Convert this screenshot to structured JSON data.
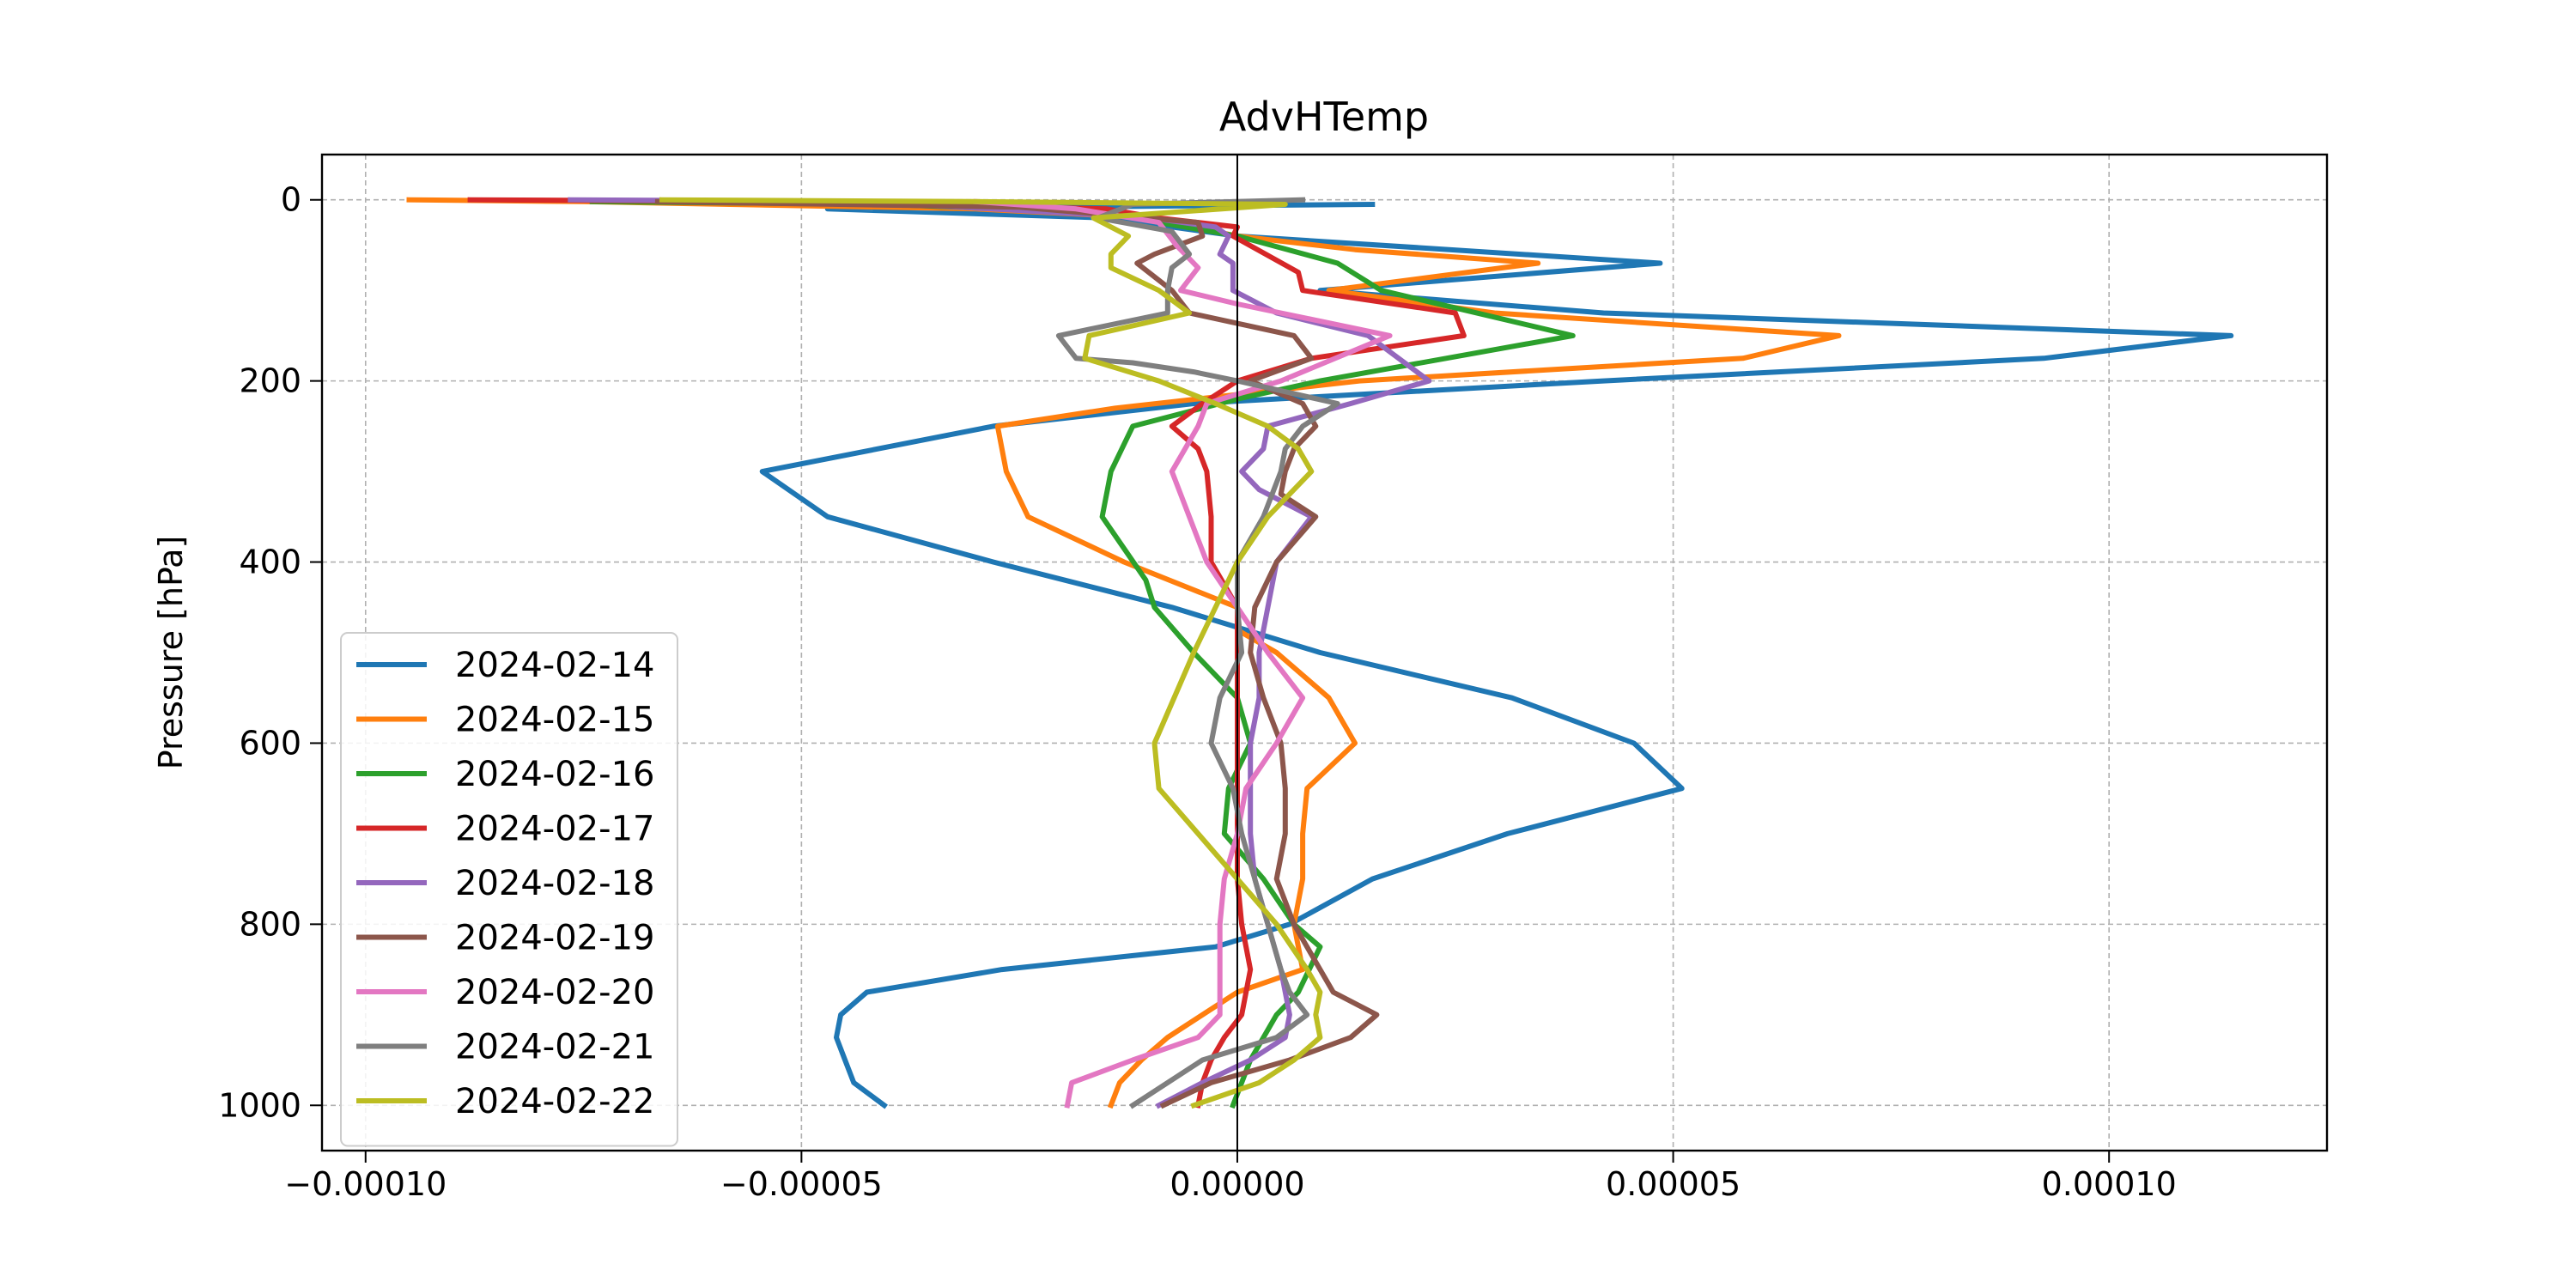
{
  "chart_data": {
    "type": "line",
    "title": "AdvHTemp",
    "xlabel": "",
    "ylabel": "Pressure [hPa]",
    "xlim": [
      -0.000105,
      0.000125
    ],
    "ylim": [
      1050,
      -50
    ],
    "y_inverted": true,
    "grid": true,
    "legend_position": "lower-left",
    "zero_line": true,
    "xticks": [
      -0.0001,
      -5e-05,
      0.0,
      5e-05,
      0.0001
    ],
    "xtick_labels": [
      "−0.00010",
      "−0.00005",
      "0.00000",
      "0.00005",
      "0.00010"
    ],
    "yticks": [
      0,
      200,
      400,
      600,
      800,
      1000
    ],
    "ytick_labels": [
      "0",
      "200",
      "400",
      "600",
      "800",
      "1000"
    ],
    "series": [
      {
        "name": "2024-02-14",
        "color": "#1f77b4",
        "points": [
          [
            1.55e-05,
            5
          ],
          [
            -4.7e-05,
            10
          ],
          [
            -1.5e-05,
            20
          ],
          [
            0.0,
            40
          ],
          [
            4.85e-05,
            70
          ],
          [
            9.5e-06,
            100
          ],
          [
            4.2e-05,
            125
          ],
          [
            0.000114,
            150
          ],
          [
            9.25e-05,
            175
          ],
          [
            4.2e-05,
            200
          ],
          [
            -5e-06,
            225
          ],
          [
            -2.8e-05,
            250
          ],
          [
            -5.45e-05,
            300
          ],
          [
            -4.7e-05,
            350
          ],
          [
            -2.8e-05,
            400
          ],
          [
            -7.5e-06,
            450
          ],
          [
            9.5e-06,
            500
          ],
          [
            3.15e-05,
            550
          ],
          [
            4.55e-05,
            600
          ],
          [
            5.1e-05,
            650
          ],
          [
            3.1e-05,
            700
          ],
          [
            1.55e-05,
            750
          ],
          [
            6e-06,
            800
          ],
          [
            -2.5e-06,
            825
          ],
          [
            -2.7e-05,
            850
          ],
          [
            -4.25e-05,
            875
          ],
          [
            -4.55e-05,
            900
          ],
          [
            -4.6e-05,
            925
          ],
          [
            -4.5e-05,
            950
          ],
          [
            -4.4e-05,
            975
          ],
          [
            -4.05e-05,
            1000
          ]
        ]
      },
      {
        "name": "2024-02-15",
        "color": "#ff7f0e",
        "points": [
          [
            -9.5e-05,
            0
          ],
          [
            -7.5e-05,
            2
          ],
          [
            -3e-05,
            10
          ],
          [
            -1e-05,
            20
          ],
          [
            0.0,
            40
          ],
          [
            1.35e-05,
            55
          ],
          [
            3.45e-05,
            70
          ],
          [
            1.05e-05,
            100
          ],
          [
            2.95e-05,
            125
          ],
          [
            6.9e-05,
            150
          ],
          [
            5.8e-05,
            175
          ],
          [
            1.4e-05,
            200
          ],
          [
            0.0,
            215
          ],
          [
            -1.4e-05,
            230
          ],
          [
            -2.75e-05,
            250
          ],
          [
            -2.65e-05,
            300
          ],
          [
            -2.4e-05,
            350
          ],
          [
            -1.3e-05,
            400
          ],
          [
            0.0,
            450
          ],
          [
            0.0,
            475
          ],
          [
            4.5e-06,
            500
          ],
          [
            1.05e-05,
            550
          ],
          [
            1.35e-05,
            600
          ],
          [
            8e-06,
            650
          ],
          [
            7.5e-06,
            700
          ],
          [
            7.5e-06,
            750
          ],
          [
            6.5e-06,
            800
          ],
          [
            7.5e-06,
            850
          ],
          [
            0.0,
            875
          ],
          [
            -4e-06,
            900
          ],
          [
            -8e-06,
            925
          ],
          [
            -1.1e-05,
            950
          ],
          [
            -1.35e-05,
            975
          ],
          [
            -1.45e-05,
            1000
          ]
        ]
      },
      {
        "name": "2024-02-16",
        "color": "#2ca02c",
        "points": [
          [
            -7.4e-05,
            2
          ],
          [
            -4e-05,
            5
          ],
          [
            -1.5e-05,
            15
          ],
          [
            0.0,
            40
          ],
          [
            1.15e-05,
            70
          ],
          [
            1.65e-05,
            100
          ],
          [
            3.85e-05,
            150
          ],
          [
            9.5e-06,
            200
          ],
          [
            0.0,
            220
          ],
          [
            -1.2e-05,
            250
          ],
          [
            -1.45e-05,
            300
          ],
          [
            -1.55e-05,
            350
          ],
          [
            -1.05e-05,
            420
          ],
          [
            -9.5e-06,
            450
          ],
          [
            -5e-06,
            500
          ],
          [
            0.0,
            550
          ],
          [
            1.5e-06,
            600
          ],
          [
            -1e-06,
            650
          ],
          [
            -1.5e-06,
            700
          ],
          [
            3e-06,
            750
          ],
          [
            6.5e-06,
            800
          ],
          [
            9.5e-06,
            825
          ],
          [
            7e-06,
            875
          ],
          [
            4.5e-06,
            900
          ],
          [
            1.5e-06,
            950
          ],
          [
            -5e-07,
            1000
          ]
        ]
      },
      {
        "name": "2024-02-17",
        "color": "#d62728",
        "points": [
          [
            -8.8e-05,
            0
          ],
          [
            -5e-05,
            2
          ],
          [
            -1.5e-05,
            10
          ],
          [
            -9e-06,
            20
          ],
          [
            0.0,
            30
          ],
          [
            -5e-07,
            40
          ],
          [
            7e-06,
            80
          ],
          [
            7.5e-06,
            100
          ],
          [
            2.5e-05,
            125
          ],
          [
            2.6e-05,
            150
          ],
          [
            8.5e-06,
            175
          ],
          [
            0.0,
            200
          ],
          [
            -4e-06,
            225
          ],
          [
            -7.5e-06,
            250
          ],
          [
            -4.5e-06,
            275
          ],
          [
            -3.5e-06,
            300
          ],
          [
            -3e-06,
            350
          ],
          [
            -3e-06,
            400
          ],
          [
            0.0,
            450
          ],
          [
            0.0,
            500
          ],
          [
            0.0,
            550
          ],
          [
            0.0,
            600
          ],
          [
            0.0,
            650
          ],
          [
            0.0,
            700
          ],
          [
            0.0,
            750
          ],
          [
            5e-07,
            800
          ],
          [
            1.5e-06,
            850
          ],
          [
            5e-07,
            900
          ],
          [
            -1.5e-06,
            925
          ],
          [
            -3e-06,
            950
          ],
          [
            -4e-06,
            975
          ],
          [
            -4.5e-06,
            1000
          ]
        ]
      },
      {
        "name": "2024-02-18",
        "color": "#9467bd",
        "points": [
          [
            -7.65e-05,
            0
          ],
          [
            -4.3e-05,
            2
          ],
          [
            -1e-05,
            20
          ],
          [
            -2.5e-06,
            30
          ],
          [
            -1e-06,
            40
          ],
          [
            -2e-06,
            60
          ],
          [
            -5e-07,
            70
          ],
          [
            -5e-07,
            100
          ],
          [
            4.5e-06,
            125
          ],
          [
            1.5e-05,
            150
          ],
          [
            2.2e-05,
            200
          ],
          [
            1.3e-05,
            225
          ],
          [
            3.5e-06,
            250
          ],
          [
            3e-06,
            275
          ],
          [
            5e-07,
            300
          ],
          [
            2.5e-06,
            320
          ],
          [
            8.5e-06,
            350
          ],
          [
            4.5e-06,
            400
          ],
          [
            3.5e-06,
            450
          ],
          [
            2.5e-06,
            500
          ],
          [
            2.5e-06,
            550
          ],
          [
            1.5e-06,
            600
          ],
          [
            1.5e-06,
            650
          ],
          [
            1.5e-06,
            700
          ],
          [
            2e-06,
            750
          ],
          [
            3.5e-06,
            800
          ],
          [
            5e-06,
            850
          ],
          [
            6e-06,
            900
          ],
          [
            5.5e-06,
            925
          ],
          [
            1.5e-06,
            950
          ],
          [
            -4e-06,
            975
          ],
          [
            -9e-06,
            1000
          ]
        ]
      },
      {
        "name": "2024-02-19",
        "color": "#8c564b",
        "points": [
          [
            -6.65e-05,
            2
          ],
          [
            -2.5e-05,
            8
          ],
          [
            -4.5e-06,
            25
          ],
          [
            -4e-06,
            40
          ],
          [
            -9.5e-06,
            60
          ],
          [
            -1.15e-05,
            70
          ],
          [
            -7.5e-06,
            100
          ],
          [
            -5.5e-06,
            125
          ],
          [
            6.5e-06,
            150
          ],
          [
            8.5e-06,
            175
          ],
          [
            1.5e-06,
            200
          ],
          [
            7.5e-06,
            225
          ],
          [
            9e-06,
            250
          ],
          [
            6.5e-06,
            275
          ],
          [
            5.5e-06,
            300
          ],
          [
            5e-06,
            325
          ],
          [
            9e-06,
            350
          ],
          [
            4.5e-06,
            400
          ],
          [
            2e-06,
            450
          ],
          [
            1.5e-06,
            500
          ],
          [
            3e-06,
            550
          ],
          [
            5e-06,
            600
          ],
          [
            5.5e-06,
            650
          ],
          [
            5.5e-06,
            700
          ],
          [
            4.5e-06,
            750
          ],
          [
            6.5e-06,
            800
          ],
          [
            9.5e-06,
            850
          ],
          [
            1.1e-05,
            875
          ],
          [
            1.6e-05,
            900
          ],
          [
            1.3e-05,
            925
          ],
          [
            6e-06,
            950
          ],
          [
            -3e-06,
            975
          ],
          [
            -8.5e-06,
            1000
          ]
        ]
      },
      {
        "name": "2024-02-20",
        "color": "#e377c2",
        "points": [
          [
            -3e-05,
            2
          ],
          [
            -1.85e-05,
            10
          ],
          [
            -9e-06,
            25
          ],
          [
            -7e-06,
            50
          ],
          [
            -4.5e-06,
            75
          ],
          [
            -6.5e-06,
            100
          ],
          [
            0.0,
            115
          ],
          [
            1.75e-05,
            150
          ],
          [
            5e-06,
            200
          ],
          [
            -3.5e-06,
            225
          ],
          [
            -4.5e-06,
            250
          ],
          [
            -6e-06,
            275
          ],
          [
            -7.5e-06,
            300
          ],
          [
            -5.5e-06,
            350
          ],
          [
            -3.5e-06,
            400
          ],
          [
            0.0,
            450
          ],
          [
            3.5e-06,
            500
          ],
          [
            7.5e-06,
            550
          ],
          [
            4.5e-06,
            600
          ],
          [
            1e-06,
            650
          ],
          [
            0.0,
            700
          ],
          [
            -1.5e-06,
            750
          ],
          [
            -2e-06,
            800
          ],
          [
            -2e-06,
            850
          ],
          [
            -2e-06,
            900
          ],
          [
            -4.5e-06,
            925
          ],
          [
            -1.2e-05,
            950
          ],
          [
            -1.9e-05,
            975
          ],
          [
            -1.95e-05,
            1000
          ]
        ]
      },
      {
        "name": "2024-02-21",
        "color": "#7f7f7f",
        "points": [
          [
            7.5e-06,
            0
          ],
          [
            -1.2e-05,
            5
          ],
          [
            -1.6e-05,
            20
          ],
          [
            -7.5e-06,
            35
          ],
          [
            -5.5e-06,
            60
          ],
          [
            -7.5e-06,
            75
          ],
          [
            -8e-06,
            100
          ],
          [
            -8e-06,
            125
          ],
          [
            -2.05e-05,
            150
          ],
          [
            -1.85e-05,
            175
          ],
          [
            -1.2e-05,
            180
          ],
          [
            -5e-06,
            190
          ],
          [
            0.0,
            200
          ],
          [
            1.15e-05,
            225
          ],
          [
            7.5e-06,
            250
          ],
          [
            5.5e-06,
            275
          ],
          [
            5e-06,
            300
          ],
          [
            3e-06,
            350
          ],
          [
            0.0,
            400
          ],
          [
            0.0,
            450
          ],
          [
            5e-07,
            500
          ],
          [
            -2e-06,
            550
          ],
          [
            -3e-06,
            600
          ],
          [
            -5e-07,
            650
          ],
          [
            5e-07,
            700
          ],
          [
            2e-06,
            750
          ],
          [
            3.5e-06,
            800
          ],
          [
            5e-06,
            850
          ],
          [
            6e-06,
            875
          ],
          [
            8e-06,
            900
          ],
          [
            4.5e-06,
            925
          ],
          [
            -4e-06,
            950
          ],
          [
            -1.2e-05,
            1000
          ]
        ]
      },
      {
        "name": "2024-02-22",
        "color": "#bcbd22",
        "points": [
          [
            -6.6e-05,
            0
          ],
          [
            -3e-05,
            2
          ],
          [
            5.5e-06,
            5
          ],
          [
            -1.65e-05,
            20
          ],
          [
            -1.25e-05,
            40
          ],
          [
            -1.45e-05,
            60
          ],
          [
            -1.45e-05,
            75
          ],
          [
            -9e-06,
            100
          ],
          [
            -5.5e-06,
            125
          ],
          [
            -1.7e-05,
            150
          ],
          [
            -1.75e-05,
            175
          ],
          [
            -9e-06,
            200
          ],
          [
            -2.5e-06,
            225
          ],
          [
            3.5e-06,
            250
          ],
          [
            7e-06,
            275
          ],
          [
            8.5e-06,
            300
          ],
          [
            3.5e-06,
            350
          ],
          [
            0.0,
            400
          ],
          [
            -5e-06,
            500
          ],
          [
            -9.5e-06,
            600
          ],
          [
            -9e-06,
            650
          ],
          [
            -4.5e-06,
            700
          ],
          [
            0.0,
            750
          ],
          [
            4.5e-06,
            800
          ],
          [
            8e-06,
            850
          ],
          [
            9.5e-06,
            875
          ],
          [
            9e-06,
            900
          ],
          [
            9.5e-06,
            925
          ],
          [
            6.5e-06,
            950
          ],
          [
            2.5e-06,
            975
          ],
          [
            -5e-06,
            1000
          ]
        ]
      }
    ]
  }
}
